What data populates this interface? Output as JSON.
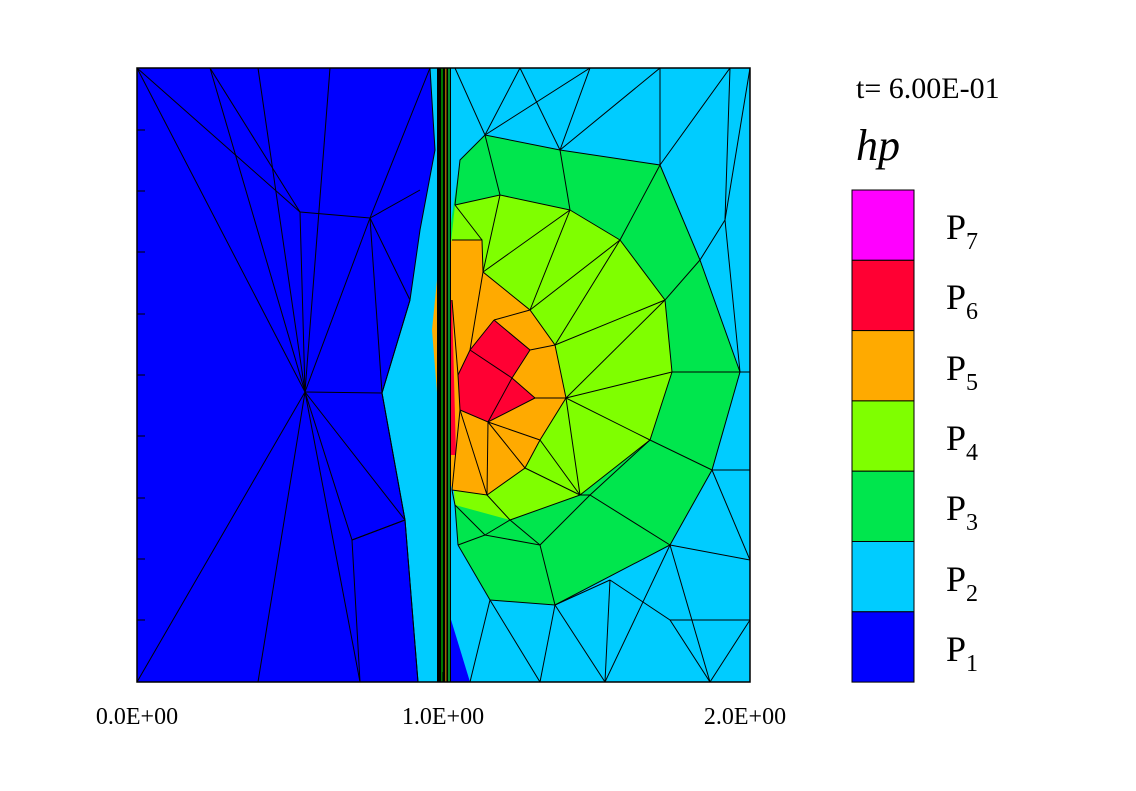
{
  "time_label": "t= 6.00E-01",
  "variable_label": "hp",
  "x_axis": {
    "tick_labels": [
      "0.0E+00",
      "1.0E+00",
      "2.0E+00"
    ],
    "tick_values": [
      0.0,
      1.0,
      2.0
    ],
    "range": [
      0.0,
      2.0
    ]
  },
  "legend": [
    {
      "base": "P",
      "sub": "7",
      "color": "#ff00ff"
    },
    {
      "base": "P",
      "sub": "6",
      "color": "#ff0033"
    },
    {
      "base": "P",
      "sub": "5",
      "color": "#ffaa00"
    },
    {
      "base": "P",
      "sub": "4",
      "color": "#7fff00"
    },
    {
      "base": "P",
      "sub": "3",
      "color": "#00e64d"
    },
    {
      "base": "P",
      "sub": "2",
      "color": "#00ccff"
    },
    {
      "base": "P",
      "sub": "1",
      "color": "#0000ff"
    }
  ]
}
